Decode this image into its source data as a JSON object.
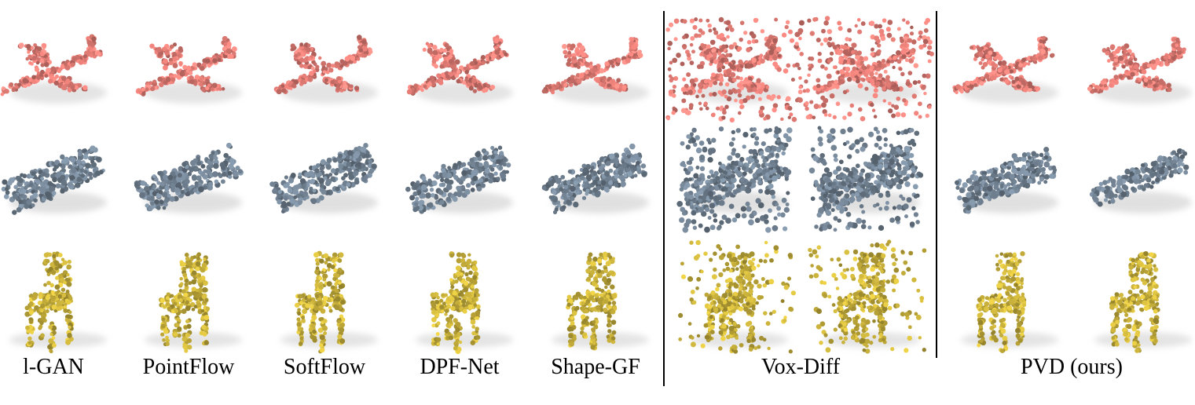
{
  "figure": {
    "method_labels": [
      "l-GAN",
      "PointFlow",
      "SoftFlow",
      "DPF-Net",
      "Shape-GF",
      "Vox-Diff",
      "PVD (ours)"
    ],
    "categories": [
      {
        "name": "airplane",
        "color": "#e07b74",
        "shadow": "#d9d9d9"
      },
      {
        "name": "car",
        "color": "#6f7f8f",
        "shadow": "#d4d4d4"
      },
      {
        "name": "chair",
        "color": "#c4ad3a",
        "shadow": "#d9d9d9"
      }
    ]
  }
}
